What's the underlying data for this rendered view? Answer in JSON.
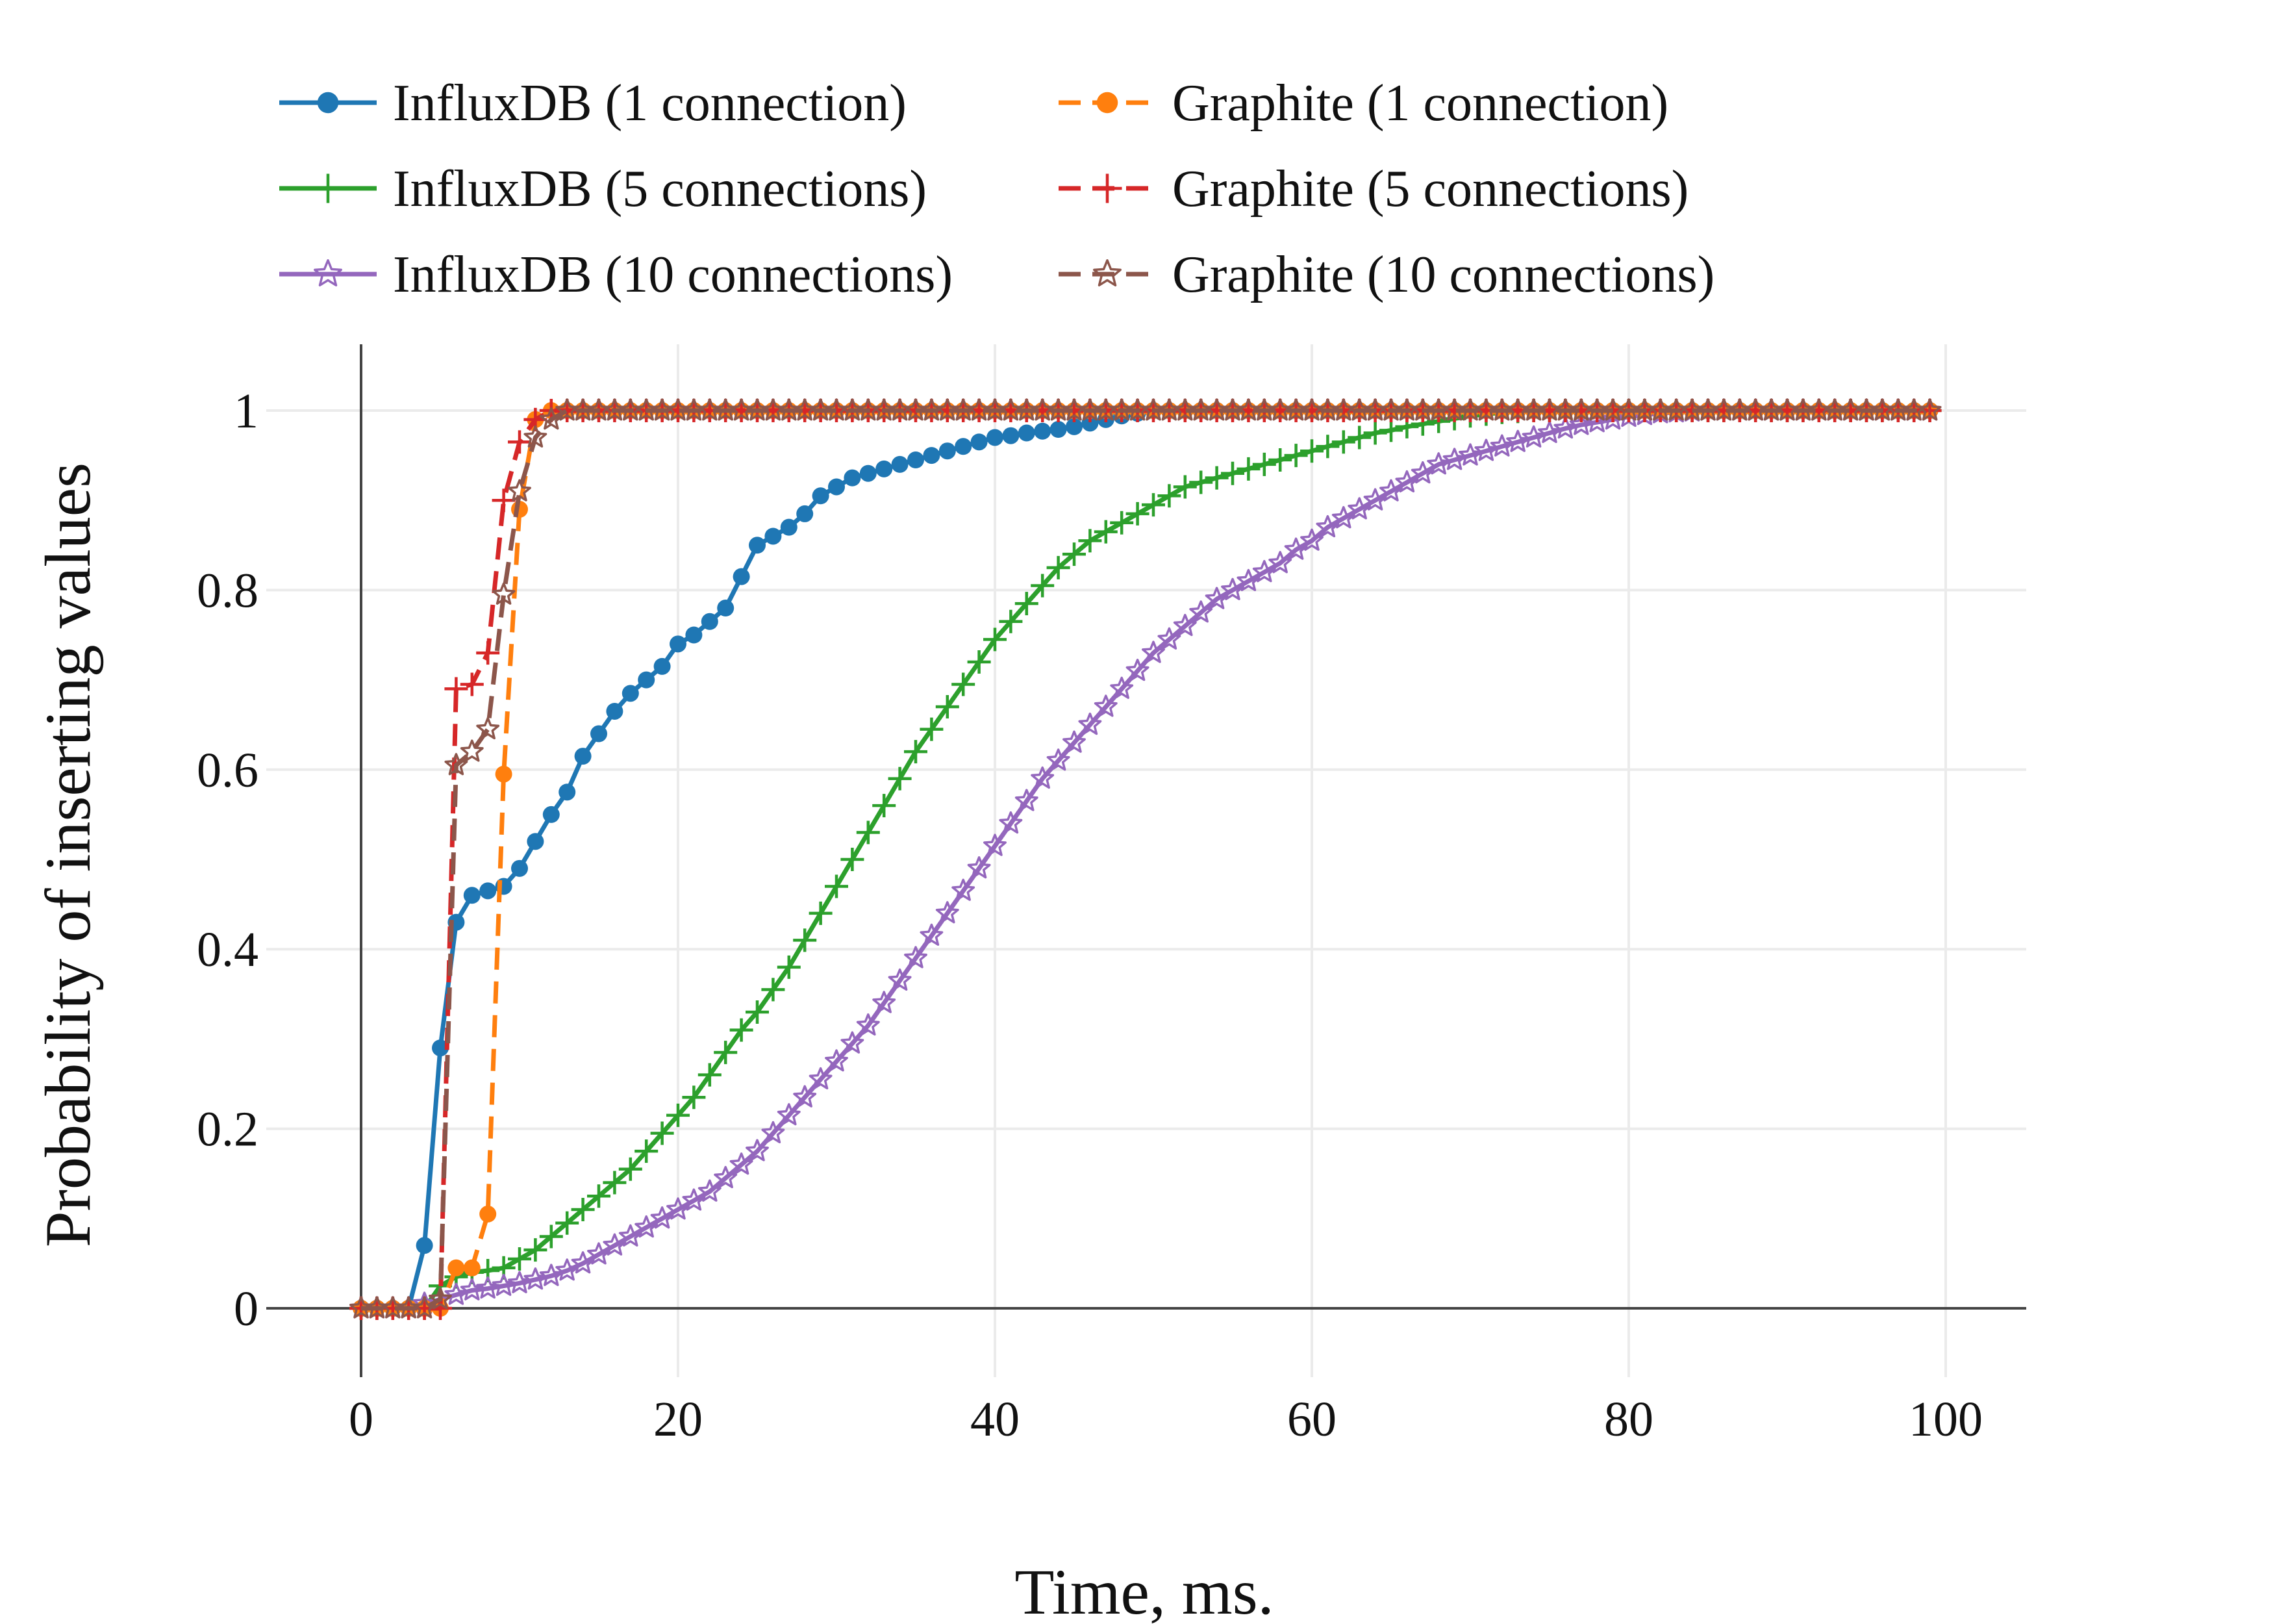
{
  "chart_data": {
    "type": "line",
    "title": "",
    "xlabel": "Time, ms.",
    "ylabel": "Probability of inserting values",
    "xlim": [
      -6,
      105
    ],
    "ylim": [
      -0.07,
      1.07
    ],
    "xticks": [
      0,
      20,
      40,
      60,
      80,
      100
    ],
    "xtick_labels": [
      "0",
      "20",
      "40",
      "60",
      "80",
      "100"
    ],
    "yticks": [
      0,
      0.2,
      0.4,
      0.6,
      0.8,
      1
    ],
    "ytick_labels": [
      "0",
      "0.2",
      "0.4",
      "0.6",
      "0.8",
      "1"
    ],
    "grid": true,
    "legend": "top, two columns",
    "series": [
      {
        "name": "InfluxDB (1 connection)",
        "color": "#1f77b4",
        "dash": "solid",
        "marker": "circle",
        "x_start": 0,
        "x_step": 1,
        "values": [
          0,
          0,
          0,
          0,
          0.07,
          0.29,
          0.43,
          0.46,
          0.465,
          0.47,
          0.49,
          0.52,
          0.55,
          0.575,
          0.615,
          0.64,
          0.665,
          0.685,
          0.7,
          0.715,
          0.74,
          0.75,
          0.765,
          0.78,
          0.815,
          0.85,
          0.86,
          0.87,
          0.885,
          0.905,
          0.915,
          0.925,
          0.93,
          0.935,
          0.94,
          0.945,
          0.95,
          0.955,
          0.96,
          0.965,
          0.97,
          0.972,
          0.975,
          0.977,
          0.979,
          0.982,
          0.986,
          0.99,
          0.994,
          0.997,
          1,
          1,
          1,
          1,
          1,
          1,
          1,
          1,
          1,
          1,
          1,
          1,
          1,
          1,
          1,
          1,
          1,
          1,
          1,
          1,
          1,
          1,
          1,
          1,
          1,
          1,
          1,
          1,
          1,
          1,
          1,
          1,
          1,
          1,
          1,
          1,
          1,
          1,
          1,
          1,
          1,
          1,
          1,
          1,
          1,
          1,
          1,
          1,
          1,
          1
        ]
      },
      {
        "name": "InfluxDB (5 connections)",
        "color": "#2ca02c",
        "dash": "solid",
        "marker": "plus",
        "x_start": 0,
        "x_step": 1,
        "values": [
          0,
          0,
          0,
          0,
          0,
          0.025,
          0.035,
          0.04,
          0.042,
          0.045,
          0.055,
          0.065,
          0.08,
          0.095,
          0.11,
          0.125,
          0.14,
          0.155,
          0.175,
          0.195,
          0.215,
          0.235,
          0.26,
          0.285,
          0.31,
          0.33,
          0.355,
          0.38,
          0.41,
          0.44,
          0.47,
          0.5,
          0.53,
          0.56,
          0.59,
          0.62,
          0.645,
          0.67,
          0.695,
          0.72,
          0.745,
          0.765,
          0.785,
          0.805,
          0.825,
          0.84,
          0.855,
          0.865,
          0.875,
          0.885,
          0.895,
          0.905,
          0.915,
          0.92,
          0.925,
          0.93,
          0.935,
          0.94,
          0.945,
          0.95,
          0.955,
          0.96,
          0.965,
          0.97,
          0.975,
          0.978,
          0.982,
          0.985,
          0.988,
          0.991,
          0.994,
          0.996,
          0.998,
          0.999,
          1,
          1,
          1,
          1,
          1,
          1,
          1,
          1,
          1,
          1,
          1,
          1,
          1,
          1,
          1,
          1,
          1,
          1,
          1,
          1,
          1,
          1,
          1,
          1,
          1,
          1
        ]
      },
      {
        "name": "InfluxDB (10 connections)",
        "color": "#9467bd",
        "dash": "solid",
        "marker": "star",
        "x_start": 0,
        "x_step": 1,
        "values": [
          0,
          0,
          0,
          0,
          0.005,
          0.01,
          0.015,
          0.02,
          0.022,
          0.025,
          0.028,
          0.032,
          0.036,
          0.042,
          0.05,
          0.06,
          0.07,
          0.08,
          0.09,
          0.1,
          0.11,
          0.12,
          0.13,
          0.145,
          0.16,
          0.175,
          0.195,
          0.215,
          0.235,
          0.255,
          0.275,
          0.295,
          0.315,
          0.34,
          0.365,
          0.39,
          0.415,
          0.44,
          0.465,
          0.49,
          0.515,
          0.54,
          0.565,
          0.59,
          0.61,
          0.63,
          0.65,
          0.67,
          0.69,
          0.71,
          0.73,
          0.745,
          0.76,
          0.775,
          0.79,
          0.8,
          0.81,
          0.82,
          0.83,
          0.845,
          0.855,
          0.87,
          0.88,
          0.89,
          0.9,
          0.91,
          0.92,
          0.93,
          0.94,
          0.945,
          0.95,
          0.955,
          0.96,
          0.965,
          0.97,
          0.975,
          0.98,
          0.984,
          0.987,
          0.99,
          0.993,
          0.995,
          0.997,
          0.998,
          0.999,
          1,
          1,
          1,
          1,
          1,
          1,
          1,
          1,
          1,
          1,
          1,
          1,
          1,
          1,
          1
        ]
      },
      {
        "name": "Graphite (1 connection)",
        "color": "#ff7f0e",
        "dash": "dashed",
        "marker": "circle",
        "x_start": 0,
        "x_step": 1,
        "values": [
          0,
          0,
          0,
          0,
          0,
          0,
          0.045,
          0.045,
          0.105,
          0.595,
          0.89,
          0.99,
          1,
          1,
          1,
          1,
          1,
          1,
          1,
          1,
          1,
          1,
          1,
          1,
          1,
          1,
          1,
          1,
          1,
          1,
          1,
          1,
          1,
          1,
          1,
          1,
          1,
          1,
          1,
          1,
          1,
          1,
          1,
          1,
          1,
          1,
          1,
          1,
          1,
          1,
          1,
          1,
          1,
          1,
          1,
          1,
          1,
          1,
          1,
          1,
          1,
          1,
          1,
          1,
          1,
          1,
          1,
          1,
          1,
          1,
          1,
          1,
          1,
          1,
          1,
          1,
          1,
          1,
          1,
          1,
          1,
          1,
          1,
          1,
          1,
          1,
          1,
          1,
          1,
          1,
          1,
          1,
          1,
          1,
          1,
          1,
          1,
          1,
          1,
          1
        ]
      },
      {
        "name": "Graphite (5 connections)",
        "color": "#d62728",
        "dash": "dashed",
        "marker": "plus",
        "x_start": 0,
        "x_step": 1,
        "values": [
          0,
          0,
          0,
          0,
          0,
          0,
          0.69,
          0.695,
          0.73,
          0.9,
          0.965,
          0.99,
          1,
          1,
          1,
          1,
          1,
          1,
          1,
          1,
          1,
          1,
          1,
          1,
          1,
          1,
          1,
          1,
          1,
          1,
          1,
          1,
          1,
          1,
          1,
          1,
          1,
          1,
          1,
          1,
          1,
          1,
          1,
          1,
          1,
          1,
          1,
          1,
          1,
          1,
          1,
          1,
          1,
          1,
          1,
          1,
          1,
          1,
          1,
          1,
          1,
          1,
          1,
          1,
          1,
          1,
          1,
          1,
          1,
          1,
          1,
          1,
          1,
          1,
          1,
          1,
          1,
          1,
          1,
          1,
          1,
          1,
          1,
          1,
          1,
          1,
          1,
          1,
          1,
          1,
          1,
          1,
          1,
          1,
          1,
          1,
          1,
          1,
          1,
          1
        ]
      },
      {
        "name": "Graphite (10 connections)",
        "color": "#8c564b",
        "dash": "dashed",
        "marker": "star",
        "x_start": 0,
        "x_step": 1,
        "values": [
          0,
          0,
          0,
          0,
          0,
          0.01,
          0.605,
          0.62,
          0.645,
          0.795,
          0.91,
          0.97,
          0.99,
          1,
          1,
          1,
          1,
          1,
          1,
          1,
          1,
          1,
          1,
          1,
          1,
          1,
          1,
          1,
          1,
          1,
          1,
          1,
          1,
          1,
          1,
          1,
          1,
          1,
          1,
          1,
          1,
          1,
          1,
          1,
          1,
          1,
          1,
          1,
          1,
          1,
          1,
          1,
          1,
          1,
          1,
          1,
          1,
          1,
          1,
          1,
          1,
          1,
          1,
          1,
          1,
          1,
          1,
          1,
          1,
          1,
          1,
          1,
          1,
          1,
          1,
          1,
          1,
          1,
          1,
          1,
          1,
          1,
          1,
          1,
          1,
          1,
          1,
          1,
          1,
          1,
          1,
          1,
          1,
          1,
          1,
          1,
          1,
          1,
          1,
          1
        ]
      }
    ]
  }
}
